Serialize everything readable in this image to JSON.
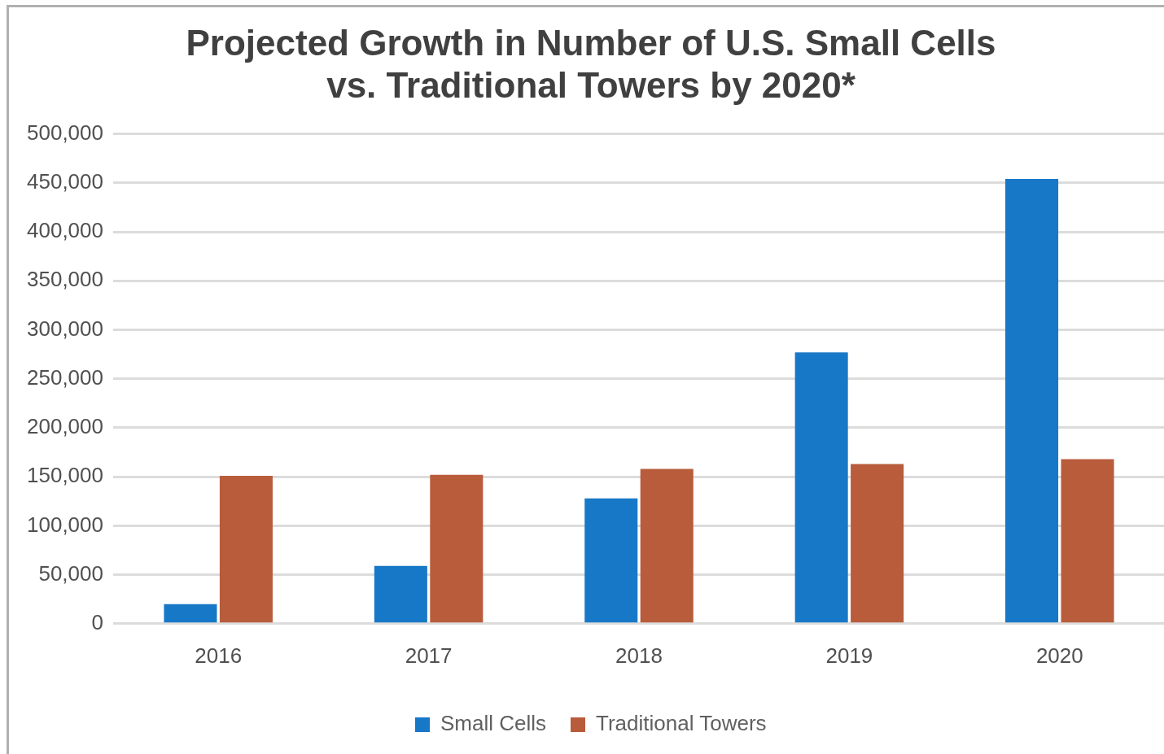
{
  "chart_data": {
    "type": "bar",
    "title": "Projected Growth in Number of U.S. Small Cells vs. Traditional Towers by 2020*",
    "categories": [
      "2016",
      "2017",
      "2018",
      "2019",
      "2020"
    ],
    "series": [
      {
        "name": "Small Cells",
        "color": "#1878c8",
        "values": [
          20000,
          59000,
          128000,
          277000,
          454000
        ]
      },
      {
        "name": "Traditional Towers",
        "color": "#b85c3c",
        "values": [
          151000,
          152000,
          158000,
          163000,
          168000
        ]
      }
    ],
    "ylim": [
      0,
      500000
    ],
    "yticks": [
      0,
      {
        "value": 50000,
        "label": "50,000"
      },
      {
        "value": 100000,
        "label": "100,000"
      },
      {
        "value": 150000,
        "label": "150,000"
      },
      {
        "value": 200000,
        "label": "200,000"
      },
      {
        "value": 250000,
        "label": "250,000"
      },
      {
        "value": 300000,
        "label": "300,000"
      },
      {
        "value": 350000,
        "label": "350,000"
      },
      {
        "value": 400000,
        "label": "400,000"
      },
      {
        "value": 450000,
        "label": "450,000"
      },
      {
        "value": 500000,
        "label": "500,000"
      }
    ],
    "grid": "y",
    "legend": "bottom"
  }
}
